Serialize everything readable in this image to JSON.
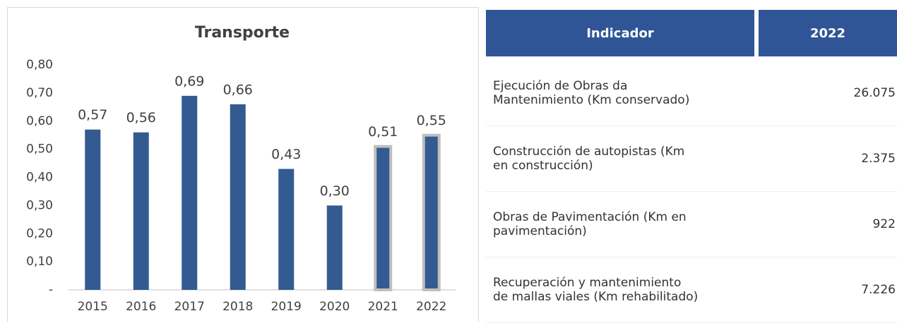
{
  "chart_data": {
    "type": "bar",
    "title": "Transporte",
    "categories": [
      "2015",
      "2016",
      "2017",
      "2018",
      "2019",
      "2020",
      "2021",
      "2022"
    ],
    "values": [
      0.57,
      0.56,
      0.69,
      0.66,
      0.43,
      0.3,
      0.51,
      0.55
    ],
    "value_labels": [
      "0,57",
      "0,56",
      "0,69",
      "0,66",
      "0,43",
      "0,30",
      "0,51",
      "0,55"
    ],
    "color": "#335b92",
    "outline_color": "#bfbfbf",
    "outlined": [
      false,
      false,
      false,
      false,
      false,
      false,
      true,
      true
    ],
    "ylim": [
      0,
      0.8
    ],
    "yticks": [
      {
        "value": 0,
        "label": "-"
      },
      {
        "value": 0.1,
        "label": "0,10"
      },
      {
        "value": 0.2,
        "label": "0,20"
      },
      {
        "value": 0.3,
        "label": "0,30"
      },
      {
        "value": 0.4,
        "label": "0,40"
      },
      {
        "value": 0.5,
        "label": "0,50"
      },
      {
        "value": 0.6,
        "label": "0,60"
      },
      {
        "value": 0.7,
        "label": "0,70"
      },
      {
        "value": 0.8,
        "label": "0,80"
      }
    ],
    "grid": false
  },
  "table": {
    "header": [
      "Indicador",
      "2022"
    ],
    "rows": [
      [
        [
          "Ejecución de Obras da",
          "Mantenimiento (Km conservado)"
        ],
        "26.075"
      ],
      [
        [
          "Construcción de autopistas (Km",
          "en construcción)"
        ],
        "2.375"
      ],
      [
        [
          "Obras de Pavimentación (Km en",
          "pavimentación)"
        ],
        "922"
      ],
      [
        [
          "Recuperación y mantenimiento",
          "de mallas viales (Km rehabilitado)"
        ],
        "7.226"
      ]
    ]
  }
}
